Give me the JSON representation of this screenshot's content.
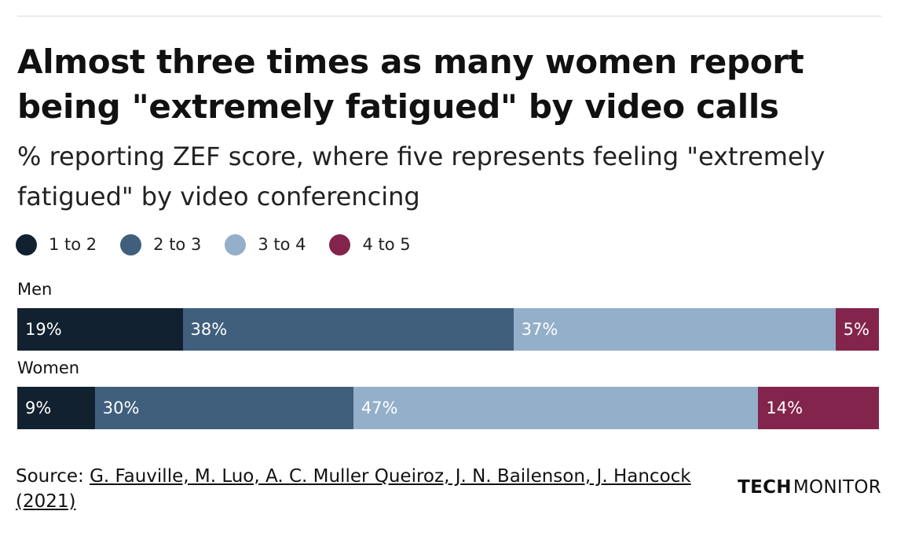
{
  "title": "Almost three times as many women report being \"extremely fatigued\" by video calls",
  "subtitle": "% reporting ZEF score, where five represents feeling \"extremely fatigued\" by video conferencing",
  "source": {
    "prefix": "Source: ",
    "reference": "G. Fauville, M. Luo, A. C. Muller Queiroz, J. N. Bailenson, J. Hancock (2021)"
  },
  "brand": {
    "part1": "TECH",
    "part2": "MONITOR"
  },
  "colors": {
    "1 to 2": "#12212f",
    "2 to 3": "#3f5f7d",
    "3 to 4": "#93afc9",
    "4 to 5": "#83244d"
  },
  "chart_data": {
    "type": "bar",
    "orientation": "horizontal",
    "stacked": true,
    "title": "Almost three times as many women report being \"extremely fatigued\" by video calls",
    "subtitle": "% reporting ZEF score, where five represents feeling \"extremely fatigued\" by video conferencing",
    "categories": [
      "Men",
      "Women"
    ],
    "series": [
      {
        "name": "1 to 2",
        "values": [
          19,
          9
        ]
      },
      {
        "name": "2 to 3",
        "values": [
          38,
          30
        ]
      },
      {
        "name": "3 to 4",
        "values": [
          37,
          47
        ]
      },
      {
        "name": "4 to 5",
        "values": [
          5,
          14
        ]
      }
    ],
    "data_labels": [
      [
        "19%",
        "38%",
        "37%",
        "5%"
      ],
      [
        "9%",
        "30%",
        "47%",
        "14%"
      ]
    ],
    "legend": "top-left",
    "grid": false
  }
}
